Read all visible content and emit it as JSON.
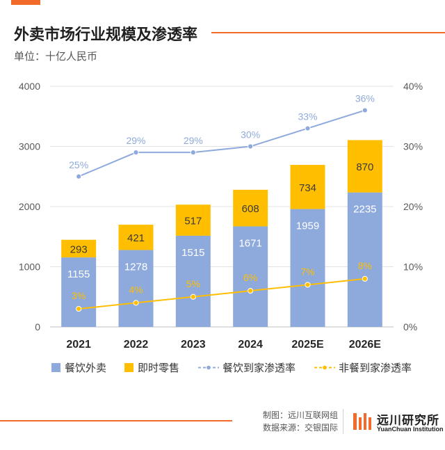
{
  "header": {
    "title": "外卖市场行业规模及渗透率",
    "unit": "单位：十亿人民币"
  },
  "chart_data": {
    "type": "bar",
    "categories": [
      "2021",
      "2022",
      "2023",
      "2024",
      "2025E",
      "2026E"
    ],
    "series": [
      {
        "name": "餐饮外卖",
        "kind": "bar",
        "axis": "left",
        "color": "#8eaadc",
        "values": [
          1155,
          1278,
          1515,
          1671,
          1959,
          2235
        ]
      },
      {
        "name": "即时零售",
        "kind": "bar",
        "axis": "left",
        "color": "#ffbf00",
        "values": [
          293,
          421,
          517,
          608,
          734,
          870
        ]
      },
      {
        "name": "餐饮到家渗透率",
        "kind": "line",
        "axis": "right",
        "color": "#8eaadc",
        "values": [
          25,
          29,
          29,
          30,
          33,
          36
        ]
      },
      {
        "name": "非餐到家渗透率",
        "kind": "line",
        "axis": "right",
        "color": "#ffbf00",
        "values": [
          3,
          4,
          5,
          6,
          7,
          8
        ]
      }
    ],
    "stacked": true,
    "ylim": [
      0,
      4000
    ],
    "yticks": [
      "0",
      "1000",
      "2000",
      "3000",
      "4000"
    ],
    "y2lim": [
      0,
      40
    ],
    "y2ticks": [
      "0%",
      "10%",
      "20%",
      "30%",
      "40%"
    ],
    "grid": true,
    "legend_position": "bottom"
  },
  "legend": [
    {
      "label": "餐饮外卖",
      "color": "#8eaadc",
      "style": "box"
    },
    {
      "label": "即时零售",
      "color": "#ffbf00",
      "style": "box"
    },
    {
      "label": "餐饮到家渗透率",
      "color": "#8eaadc",
      "style": "dashed-line"
    },
    {
      "label": "非餐到家渗透率",
      "color": "#ffbf00",
      "style": "dashed-line"
    }
  ],
  "footer": {
    "made_by": "制图：远川互联网组",
    "source": "数据来源：交银国际",
    "brand_cn": "远川研究所",
    "brand_en": "YuanChuan Institution"
  },
  "colors": {
    "accent": "#f26b2a",
    "bar_blue": "#8eaadc",
    "bar_yellow": "#ffbf00"
  }
}
